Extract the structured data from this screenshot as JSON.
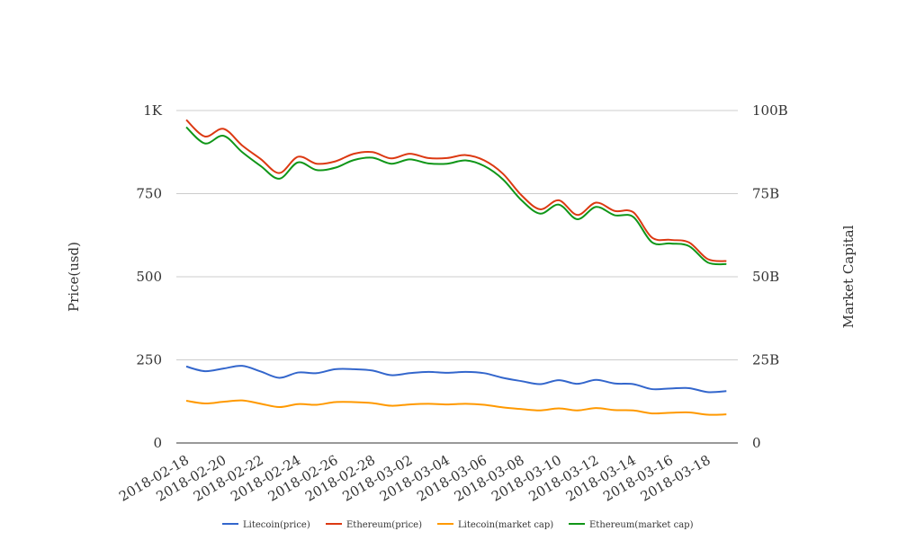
{
  "chart_data": {
    "type": "line",
    "x": [
      "2018-02-18",
      "2018-02-19",
      "2018-02-20",
      "2018-02-21",
      "2018-02-22",
      "2018-02-23",
      "2018-02-24",
      "2018-02-25",
      "2018-02-26",
      "2018-02-27",
      "2018-02-28",
      "2018-03-01",
      "2018-03-02",
      "2018-03-03",
      "2018-03-04",
      "2018-03-05",
      "2018-03-06",
      "2018-03-07",
      "2018-03-08",
      "2018-03-09",
      "2018-03-10",
      "2018-03-11",
      "2018-03-12",
      "2018-03-13",
      "2018-03-14",
      "2018-03-15",
      "2018-03-16",
      "2018-03-17",
      "2018-03-18",
      "2018-03-19"
    ],
    "x_tick_labels": [
      "2018-02-18",
      "2018-02-20",
      "2018-02-22",
      "2018-02-24",
      "2018-02-26",
      "2018-02-28",
      "2018-03-02",
      "2018-03-04",
      "2018-03-06",
      "2018-03-08",
      "2018-03-10",
      "2018-03-12",
      "2018-03-14",
      "2018-03-16",
      "2018-03-18"
    ],
    "ylabel": "Price(usd)",
    "y2label": "Market Capital",
    "ylim": [
      0,
      1000
    ],
    "y2lim": [
      0,
      100000000000
    ],
    "y_ticks": [
      {
        "value": 0,
        "label": "0"
      },
      {
        "value": 250,
        "label": "250"
      },
      {
        "value": 500,
        "label": "500"
      },
      {
        "value": 750,
        "label": "750"
      },
      {
        "value": 1000,
        "label": "1K"
      }
    ],
    "y2_ticks": [
      {
        "value": 0,
        "label": "0"
      },
      {
        "value": 25000000000,
        "label": "25B"
      },
      {
        "value": 50000000000,
        "label": "50B"
      },
      {
        "value": 75000000000,
        "label": "75B"
      },
      {
        "value": 100000000000,
        "label": "100B"
      }
    ],
    "grid": true,
    "legend_position": "bottom",
    "series": [
      {
        "name": "Litecoin(price)",
        "axis": "left",
        "color": "#3366cc",
        "values": [
          230,
          216,
          224,
          232,
          215,
          196,
          212,
          210,
          222,
          222,
          218,
          204,
          210,
          214,
          211,
          214,
          210,
          196,
          186,
          177,
          189,
          178,
          190,
          179,
          177,
          162,
          164,
          165,
          153,
          156
        ]
      },
      {
        "name": "Ethereum(price)",
        "axis": "left",
        "color": "#dc3912",
        "values": [
          972,
          922,
          945,
          895,
          854,
          812,
          861,
          840,
          847,
          870,
          875,
          856,
          870,
          857,
          857,
          866,
          850,
          810,
          745,
          703,
          730,
          686,
          723,
          698,
          694,
          618,
          611,
          603,
          553,
          547
        ]
      },
      {
        "name": "Litecoin(market cap)",
        "axis": "right",
        "color": "#ff9900",
        "values": [
          12700000000,
          11900000000,
          12400000000,
          12800000000,
          11800000000,
          10800000000,
          11700000000,
          11500000000,
          12300000000,
          12300000000,
          12000000000,
          11200000000,
          11600000000,
          11800000000,
          11600000000,
          11800000000,
          11500000000,
          10700000000,
          10200000000,
          9800000000,
          10400000000,
          9800000000,
          10500000000,
          9900000000,
          9800000000,
          8900000000,
          9100000000,
          9200000000,
          8500000000,
          8600000000
        ]
      },
      {
        "name": "Ethereum(market cap)",
        "axis": "right",
        "color": "#109618",
        "values": [
          95000000000,
          90100000000,
          92400000000,
          87500000000,
          83300000000,
          79500000000,
          84400000000,
          82100000000,
          82800000000,
          85100000000,
          85800000000,
          84000000000,
          85300000000,
          84100000000,
          84000000000,
          85000000000,
          83300000000,
          79300000000,
          73000000000,
          69000000000,
          71700000000,
          67300000000,
          71000000000,
          68500000000,
          68000000000,
          60400000000,
          60000000000,
          59200000000,
          54300000000,
          53800000000
        ]
      }
    ]
  }
}
